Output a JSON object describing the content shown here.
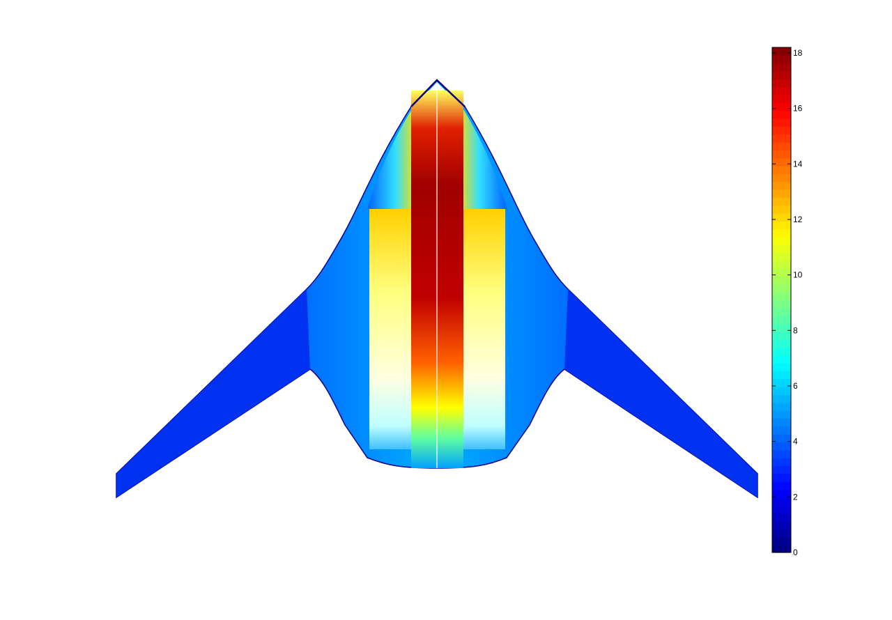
{
  "chart_data": {
    "type": "heatmap",
    "title": "",
    "xlabel": "",
    "ylabel": "",
    "axes_visible": false,
    "grid": false,
    "colormap": "jet",
    "colorbar": {
      "placement": "right",
      "range": [
        0,
        18.2
      ],
      "ticks": [
        0,
        2,
        4,
        6,
        8,
        10,
        12,
        14,
        16,
        18
      ],
      "tick_labels": [
        "0",
        "2",
        "4",
        "6",
        "8",
        "10",
        "12",
        "14",
        "16",
        "18"
      ]
    },
    "jet_colors": [
      "#00008f",
      "#0000ff",
      "#0080ff",
      "#00ffff",
      "#80ff80",
      "#ffff00",
      "#ff8000",
      "#ff0000",
      "#800000"
    ],
    "surface": {
      "description_of_values": "blended-wing planform surface; max near centerline (~18), low (~1-3) on outer wings",
      "centerline_max": 18,
      "outer_wing_value": 2,
      "inboard_strip_value": 11
    }
  }
}
